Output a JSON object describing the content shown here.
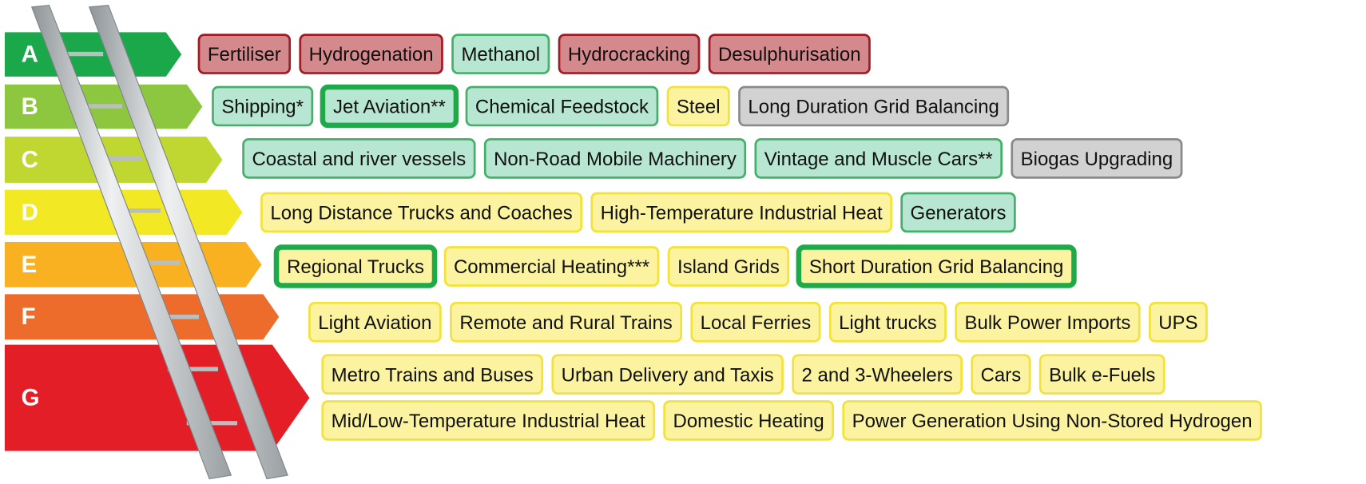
{
  "rows": [
    {
      "label": "A",
      "color": "#1aa84b",
      "lines": [
        [
          {
            "text": "Fertiliser",
            "fill": "#d4898c",
            "stroke": "#a01c24"
          },
          {
            "text": "Hydrogenation",
            "fill": "#d4898c",
            "stroke": "#a01c24"
          },
          {
            "text": "Methanol",
            "fill": "#b7e6d3",
            "stroke": "#45b06a"
          },
          {
            "text": "Hydrocracking",
            "fill": "#d4898c",
            "stroke": "#a01c24"
          },
          {
            "text": "Desulphurisation",
            "fill": "#d4898c",
            "stroke": "#a01c24"
          }
        ]
      ]
    },
    {
      "label": "B",
      "color": "#8dc63f",
      "lines": [
        [
          {
            "text": "Shipping*",
            "fill": "#b7e6d3",
            "stroke": "#45b06a"
          },
          {
            "text": "Jet Aviation**",
            "fill": "#b7e6d3",
            "stroke": "#1faa4a",
            "highlight": true
          },
          {
            "text": "Chemical Feedstock",
            "fill": "#b7e6d3",
            "stroke": "#45b06a"
          },
          {
            "text": "Steel",
            "fill": "#fbf3a0",
            "stroke": "#f3e23a"
          },
          {
            "text": "Long Duration Grid Balancing",
            "fill": "#d2d2d2",
            "stroke": "#8a8a8a"
          }
        ]
      ]
    },
    {
      "label": "C",
      "color": "#bfd730",
      "lines": [
        [
          {
            "text": "Coastal and river vessels",
            "fill": "#b7e6d3",
            "stroke": "#45b06a"
          },
          {
            "text": "Non-Road Mobile Machinery",
            "fill": "#b7e6d3",
            "stroke": "#45b06a"
          },
          {
            "text": "Vintage and Muscle Cars**",
            "fill": "#b7e6d3",
            "stroke": "#45b06a"
          },
          {
            "text": "Biogas Upgrading",
            "fill": "#d2d2d2",
            "stroke": "#8a8a8a"
          }
        ]
      ]
    },
    {
      "label": "D",
      "color": "#f2e824",
      "lines": [
        [
          {
            "text": "Long Distance Trucks and Coaches",
            "fill": "#fbf3a0",
            "stroke": "#f3e23a"
          },
          {
            "text": "High-Temperature Industrial Heat",
            "fill": "#fbf3a0",
            "stroke": "#f3e23a"
          },
          {
            "text": "Generators",
            "fill": "#b7e6d3",
            "stroke": "#45b06a"
          }
        ]
      ]
    },
    {
      "label": "E",
      "color": "#f9b122",
      "lines": [
        [
          {
            "text": "Regional Trucks",
            "fill": "#fbf3a0",
            "stroke": "#1faa4a",
            "highlight": true
          },
          {
            "text": "Commercial Heating***",
            "fill": "#fbf3a0",
            "stroke": "#f3e23a"
          },
          {
            "text": "Island Grids",
            "fill": "#fbf3a0",
            "stroke": "#f3e23a"
          },
          {
            "text": "Short Duration Grid Balancing",
            "fill": "#fbf3a0",
            "stroke": "#1faa4a",
            "highlight": true
          }
        ]
      ]
    },
    {
      "label": "F",
      "color": "#ed6b2b",
      "lines": [
        [
          {
            "text": "Light Aviation",
            "fill": "#fbf3a0",
            "stroke": "#f3e23a"
          },
          {
            "text": "Remote and Rural Trains",
            "fill": "#fbf3a0",
            "stroke": "#f3e23a"
          },
          {
            "text": "Local Ferries",
            "fill": "#fbf3a0",
            "stroke": "#f3e23a"
          },
          {
            "text": "Light trucks",
            "fill": "#fbf3a0",
            "stroke": "#f3e23a"
          },
          {
            "text": "Bulk Power Imports",
            "fill": "#fbf3a0",
            "stroke": "#f3e23a"
          },
          {
            "text": "UPS",
            "fill": "#fbf3a0",
            "stroke": "#f3e23a"
          }
        ]
      ]
    },
    {
      "label": "G",
      "color": "#e31e26",
      "lines": [
        [
          {
            "text": "Metro Trains and Buses",
            "fill": "#fbf3a0",
            "stroke": "#f3e23a"
          },
          {
            "text": "Urban Delivery and Taxis",
            "fill": "#fbf3a0",
            "stroke": "#f3e23a"
          },
          {
            "text": "2 and 3-Wheelers",
            "fill": "#fbf3a0",
            "stroke": "#f3e23a"
          },
          {
            "text": "Cars",
            "fill": "#fbf3a0",
            "stroke": "#f3e23a"
          },
          {
            "text": "Bulk e-Fuels",
            "fill": "#fbf3a0",
            "stroke": "#f3e23a"
          }
        ],
        [
          {
            "text": "Mid/Low-Temperature Industrial Heat",
            "fill": "#fbf3a0",
            "stroke": "#f3e23a"
          },
          {
            "text": "Domestic Heating",
            "fill": "#fbf3a0",
            "stroke": "#f3e23a"
          },
          {
            "text": "Power Generation Using Non-Stored Hydrogen",
            "fill": "#fbf3a0",
            "stroke": "#f3e23a"
          }
        ]
      ]
    }
  ]
}
